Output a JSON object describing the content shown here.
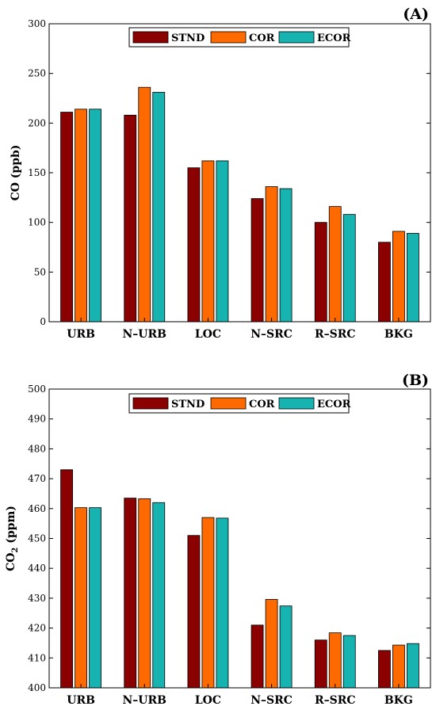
{
  "chart_data": [
    {
      "type": "bar",
      "panel_label": "(A)",
      "ylabel": "CO (ppb)",
      "ylim": [
        0,
        300
      ],
      "yticks": [
        0,
        50,
        100,
        150,
        200,
        250,
        300
      ],
      "categories": [
        "URB",
        "N–URB",
        "LOC",
        "N–SRC",
        "R–SRC",
        "BKG"
      ],
      "legend_placement": "top-center",
      "series": [
        {
          "name": "STND",
          "color": "#8b0000",
          "values": [
            211,
            208,
            155,
            124,
            100,
            80
          ]
        },
        {
          "name": "COR",
          "color": "#ff6a00",
          "values": [
            214,
            236,
            162,
            136,
            116,
            91
          ]
        },
        {
          "name": "ECOR",
          "color": "#16b3b0",
          "values": [
            214,
            231,
            162,
            134,
            108,
            89
          ]
        }
      ]
    },
    {
      "type": "bar",
      "panel_label": "(B)",
      "ylabel_main": "CO",
      "ylabel_sub": "2",
      "ylabel_unit": " (ppm)",
      "ylim": [
        400,
        500
      ],
      "yticks": [
        400,
        410,
        420,
        430,
        440,
        450,
        460,
        470,
        480,
        490,
        500
      ],
      "categories": [
        "URB",
        "N–URB",
        "LOC",
        "N–SRC",
        "R–SRC",
        "BKG"
      ],
      "legend_placement": "top-center",
      "series": [
        {
          "name": "STND",
          "color": "#8b0000",
          "values": [
            473,
            463.5,
            451,
            421,
            416,
            412.5
          ]
        },
        {
          "name": "COR",
          "color": "#ff6a00",
          "values": [
            460.3,
            463.3,
            457,
            429.6,
            418.4,
            414.3
          ]
        },
        {
          "name": "ECOR",
          "color": "#16b3b0",
          "values": [
            460.3,
            462,
            456.8,
            427.4,
            417.5,
            414.8
          ]
        }
      ]
    }
  ]
}
